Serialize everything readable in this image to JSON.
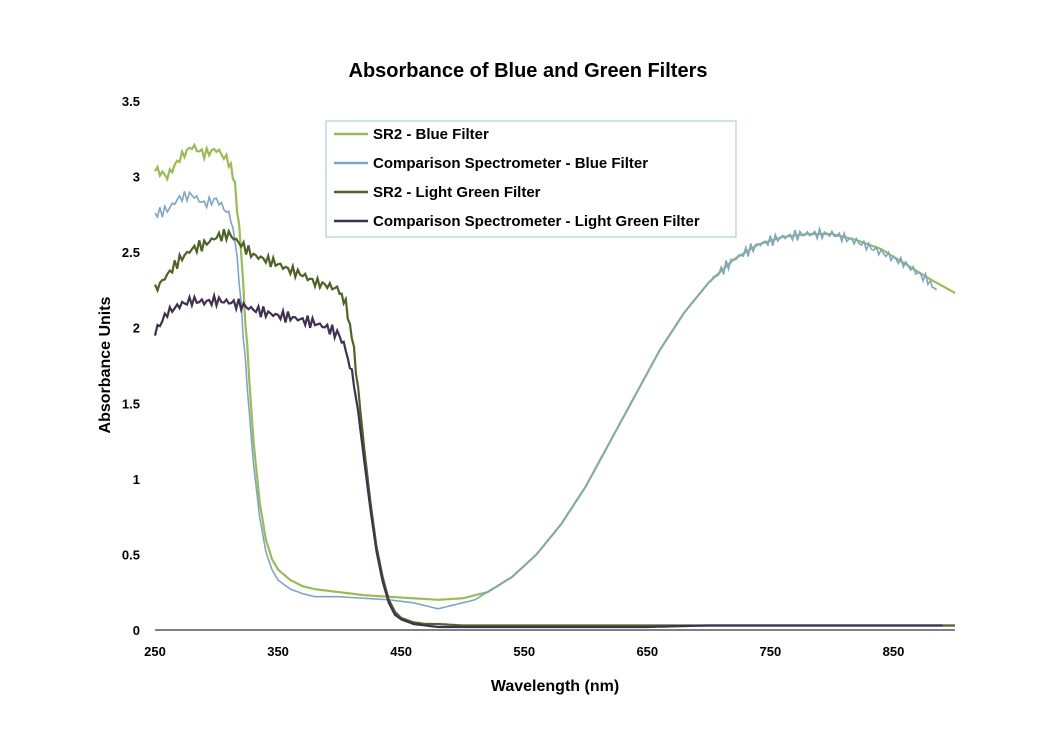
{
  "chart_data": {
    "type": "line",
    "title": "Absorbance of Blue and Green Filters",
    "xlabel": "Wavelength (nm)",
    "ylabel": "Absorbance Units",
    "xlim": [
      250,
      900
    ],
    "ylim": [
      0,
      3.5
    ],
    "x_ticks": [
      250,
      350,
      450,
      550,
      650,
      750,
      850
    ],
    "y_ticks": [
      0,
      0.5,
      1,
      1.5,
      2,
      2.5,
      3,
      3.5
    ],
    "x_tick_labels": [
      "250",
      "350",
      "450",
      "550",
      "650",
      "750",
      "850"
    ],
    "y_tick_labels": [
      "0",
      "0.5",
      "1",
      "1.5",
      "2",
      "2.5",
      "3",
      "3.5"
    ],
    "grid": false,
    "legend_position": "top-center",
    "series": [
      {
        "name": "SR2 - Blue Filter",
        "color": "#9bbb59",
        "x": [
          250,
          260,
          270,
          280,
          290,
          300,
          310,
          315,
          320,
          325,
          330,
          335,
          340,
          345,
          350,
          360,
          370,
          380,
          400,
          420,
          440,
          460,
          480,
          500,
          520,
          540,
          560,
          580,
          600,
          620,
          640,
          660,
          680,
          700,
          720,
          740,
          760,
          780,
          800,
          820,
          840,
          860,
          880,
          900
        ],
        "y": [
          3.05,
          3.0,
          3.12,
          3.2,
          3.15,
          3.18,
          3.1,
          2.95,
          2.5,
          1.85,
          1.25,
          0.85,
          0.6,
          0.47,
          0.4,
          0.33,
          0.29,
          0.27,
          0.25,
          0.23,
          0.22,
          0.21,
          0.2,
          0.21,
          0.25,
          0.35,
          0.5,
          0.7,
          0.95,
          1.25,
          1.55,
          1.85,
          2.1,
          2.3,
          2.45,
          2.55,
          2.6,
          2.62,
          2.62,
          2.58,
          2.52,
          2.42,
          2.32,
          2.23
        ]
      },
      {
        "name": "Comparison Spectrometer - Blue Filter",
        "color": "#7ea6c4",
        "x": [
          250,
          260,
          270,
          280,
          290,
          300,
          310,
          315,
          320,
          325,
          330,
          335,
          340,
          345,
          350,
          360,
          370,
          380,
          400,
          420,
          440,
          460,
          480,
          490,
          500,
          510,
          520,
          540,
          560,
          580,
          600,
          620,
          640,
          660,
          680,
          700,
          720,
          740,
          760,
          780,
          800,
          820,
          840,
          860,
          880,
          885
        ],
        "y": [
          2.75,
          2.78,
          2.86,
          2.88,
          2.82,
          2.85,
          2.75,
          2.6,
          2.15,
          1.6,
          1.1,
          0.75,
          0.52,
          0.4,
          0.33,
          0.27,
          0.24,
          0.22,
          0.22,
          0.21,
          0.2,
          0.18,
          0.14,
          0.16,
          0.18,
          0.2,
          0.25,
          0.35,
          0.5,
          0.7,
          0.95,
          1.25,
          1.55,
          1.85,
          2.1,
          2.3,
          2.45,
          2.55,
          2.6,
          2.62,
          2.62,
          2.57,
          2.5,
          2.42,
          2.3,
          2.25
        ]
      },
      {
        "name": "SR2 - Light Green Filter",
        "color": "#4f6228",
        "x": [
          250,
          260,
          270,
          280,
          290,
          300,
          310,
          320,
          330,
          340,
          350,
          360,
          370,
          380,
          390,
          400,
          405,
          410,
          415,
          420,
          425,
          430,
          435,
          440,
          445,
          450,
          460,
          470,
          480,
          500,
          550,
          600,
          650,
          700,
          750,
          800,
          850,
          900
        ],
        "y": [
          2.25,
          2.35,
          2.45,
          2.52,
          2.55,
          2.6,
          2.62,
          2.55,
          2.48,
          2.45,
          2.42,
          2.38,
          2.35,
          2.3,
          2.28,
          2.25,
          2.15,
          1.95,
          1.6,
          1.2,
          0.85,
          0.55,
          0.35,
          0.2,
          0.12,
          0.08,
          0.05,
          0.04,
          0.04,
          0.03,
          0.03,
          0.03,
          0.03,
          0.03,
          0.03,
          0.03,
          0.03,
          0.03
        ]
      },
      {
        "name": "Comparison Spectrometer - Light Green Filter",
        "color": "#403151",
        "x": [
          250,
          260,
          270,
          280,
          290,
          300,
          310,
          320,
          330,
          340,
          350,
          360,
          370,
          380,
          390,
          400,
          405,
          410,
          415,
          420,
          425,
          430,
          435,
          440,
          445,
          450,
          460,
          470,
          480,
          500,
          550,
          600,
          650,
          700,
          750,
          800,
          850,
          890
        ],
        "y": [
          1.97,
          2.1,
          2.15,
          2.18,
          2.17,
          2.18,
          2.17,
          2.15,
          2.12,
          2.1,
          2.08,
          2.07,
          2.05,
          2.03,
          2.0,
          1.95,
          1.85,
          1.7,
          1.45,
          1.12,
          0.8,
          0.52,
          0.32,
          0.18,
          0.1,
          0.07,
          0.04,
          0.03,
          0.02,
          0.02,
          0.02,
          0.02,
          0.02,
          0.03,
          0.03,
          0.03,
          0.03,
          0.03
        ]
      }
    ]
  }
}
